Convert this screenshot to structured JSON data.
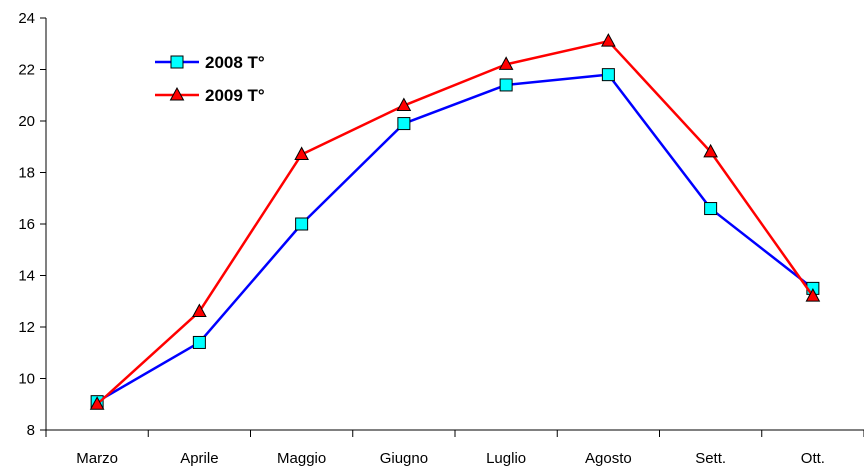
{
  "chart_data": {
    "type": "line",
    "title": "",
    "xlabel": "",
    "ylabel": "",
    "categories": [
      "Marzo",
      "Aprile",
      "Maggio",
      "Giugno",
      "Luglio",
      "Agosto",
      "Sett.",
      "Ott."
    ],
    "ylim": [
      8,
      24
    ],
    "yticks": [
      8,
      10,
      12,
      14,
      16,
      18,
      20,
      22,
      24
    ],
    "grid": false,
    "legend": "top-left",
    "series": [
      {
        "name": "2008 T°",
        "values": [
          9.1,
          11.4,
          16.0,
          19.9,
          21.4,
          21.8,
          16.6,
          13.5
        ],
        "line_color": "#0000ff",
        "marker": "square",
        "marker_color": "#00ffff"
      },
      {
        "name": "2009 T°",
        "values": [
          9.0,
          12.6,
          18.7,
          20.6,
          22.2,
          23.1,
          18.8,
          13.2
        ],
        "line_color": "#ff0000",
        "marker": "triangle",
        "marker_color": "#ff0000"
      }
    ]
  }
}
